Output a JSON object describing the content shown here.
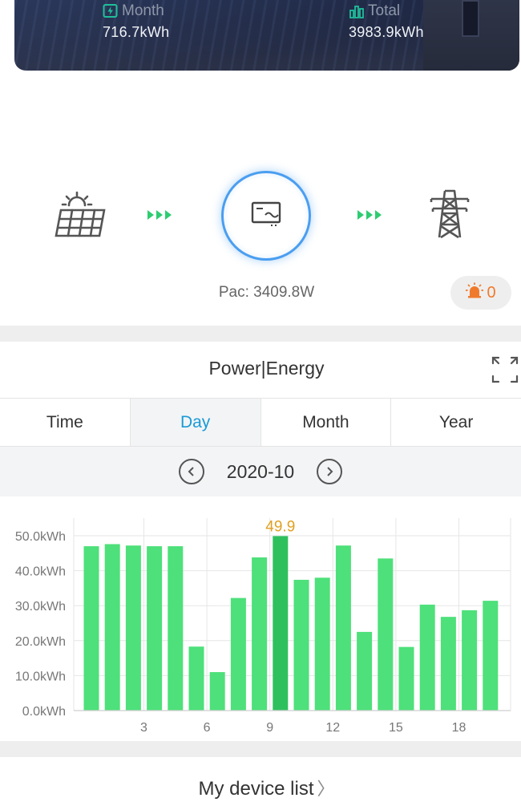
{
  "summary": {
    "month_label": "Month",
    "month_value": "716.7kWh",
    "total_label": "Total",
    "total_value": "3983.9kWh"
  },
  "flow": {
    "pac_text": "Pac: 3409.8W",
    "alarm_count": "0",
    "icons": [
      "solar-panel-icon",
      "inverter-icon",
      "power-tower-icon",
      "alarm-icon"
    ],
    "accent_color": "#2ecc71",
    "inverter_ring_color": "#4a9ef0",
    "alarm_color": "#f07a2c"
  },
  "chart_section": {
    "title": "Power|Energy",
    "tabs": [
      {
        "label": "Time",
        "active": false
      },
      {
        "label": "Day",
        "active": true
      },
      {
        "label": "Month",
        "active": false
      },
      {
        "label": "Year",
        "active": false
      }
    ],
    "date": "2020-10",
    "active_tab_color": "#1a9ad6"
  },
  "chart_data": {
    "type": "bar",
    "categories": [
      1,
      2,
      3,
      4,
      5,
      6,
      7,
      8,
      9,
      10,
      11,
      12,
      13,
      14,
      15,
      16,
      17,
      18,
      19,
      20
    ],
    "values": [
      47.0,
      47.6,
      47.2,
      47.0,
      47.0,
      18.3,
      11.0,
      32.2,
      43.8,
      49.9,
      37.4,
      38.0,
      47.2,
      22.5,
      43.5,
      18.2,
      30.3,
      26.8,
      28.7,
      31.4
    ],
    "highlighted_index": 9,
    "highlight_label": "49.9",
    "ylim": [
      0,
      50
    ],
    "yticks": [
      "0.0kWh",
      "10.0kWh",
      "20.0kWh",
      "30.0kWh",
      "40.0kWh",
      "50.0kWh"
    ],
    "xticks": [
      "3",
      "6",
      "9",
      "12",
      "15",
      "18"
    ],
    "bar_color": "#4ee07a",
    "highlight_color": "#2fc05e",
    "highlight_label_color": "#e0a020",
    "grid": true
  },
  "footer": {
    "device_list_label": "My device list",
    "chevron": "〉"
  }
}
